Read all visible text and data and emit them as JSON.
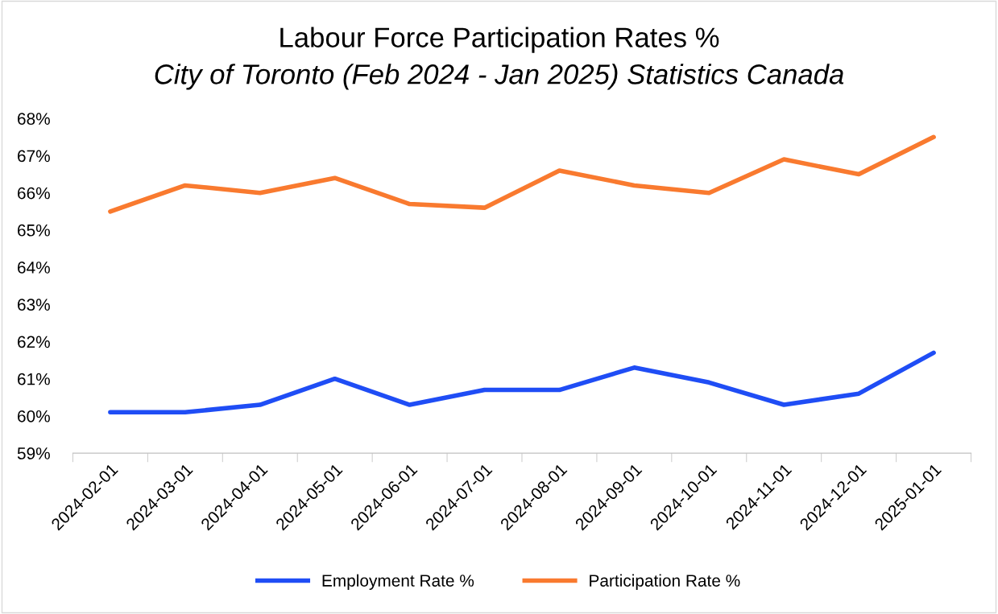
{
  "chart_data": {
    "type": "line",
    "title": "Labour Force Participation Rates %",
    "subtitle": "City of Toronto (Feb 2024 - Jan 2025) Statistics Canada",
    "categories": [
      "2024-02-01",
      "2024-03-01",
      "2024-04-01",
      "2024-05-01",
      "2024-06-01",
      "2024-07-01",
      "2024-08-01",
      "2024-09-01",
      "2024-10-01",
      "2024-11-01",
      "2024-12-01",
      "2025-01-01"
    ],
    "series": [
      {
        "name": "Employment Rate %",
        "color": "#1f4df5",
        "values": [
          60.1,
          60.1,
          60.3,
          61.0,
          60.3,
          60.7,
          60.7,
          61.3,
          60.9,
          60.3,
          60.6,
          61.7
        ]
      },
      {
        "name": "Participation Rate %",
        "color": "#f97a2f",
        "values": [
          65.5,
          66.2,
          66.0,
          66.4,
          65.7,
          65.6,
          66.6,
          66.2,
          66.0,
          66.9,
          66.5,
          67.5
        ]
      }
    ],
    "ylim": [
      59,
      68
    ],
    "yticks": [
      {
        "value": 59,
        "label": "59%"
      },
      {
        "value": 60,
        "label": "60%"
      },
      {
        "value": 61,
        "label": "61%"
      },
      {
        "value": 62,
        "label": "62%"
      },
      {
        "value": 63,
        "label": "63%"
      },
      {
        "value": 64,
        "label": "64%"
      },
      {
        "value": 65,
        "label": "65%"
      },
      {
        "value": 66,
        "label": "66%"
      },
      {
        "value": 67,
        "label": "67%"
      },
      {
        "value": 68,
        "label": "68%"
      }
    ],
    "grid": false,
    "legend": "bottom",
    "marker": "none",
    "line_style": "solid"
  }
}
